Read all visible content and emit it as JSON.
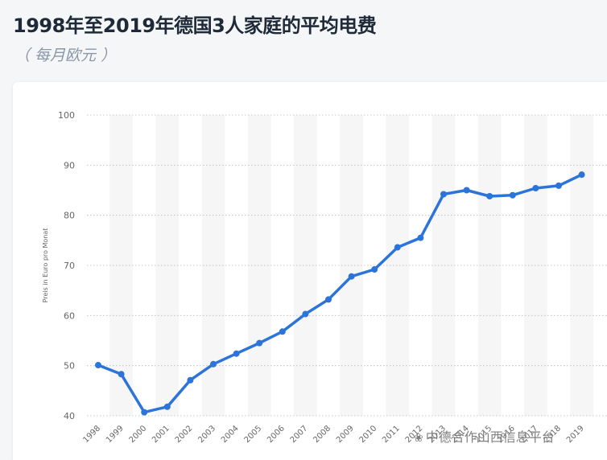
{
  "header": {
    "title": "1998年至2019年德国3人家庭的平均电费",
    "subtitle": "（ 每月欧元 ）"
  },
  "watermark": {
    "icon": "wechat-icon",
    "text": "中德合作山西信息平台"
  },
  "colors": {
    "line": "#2d74da",
    "band": "#f6f6f6",
    "grid": "#b8b8b8"
  },
  "chart_data": {
    "type": "line",
    "title": "1998年至2019年德国3人家庭的平均电费",
    "subtitle": "（ 每月欧元 ）",
    "xlabel": "",
    "ylabel": "Preis in Euro pro Monat",
    "ylim": [
      40,
      100
    ],
    "yticks": [
      40,
      50,
      60,
      70,
      80,
      90,
      100
    ],
    "grid": true,
    "categories": [
      "1998",
      "1999",
      "2000",
      "2001",
      "2002",
      "2003",
      "2004",
      "2005",
      "2006",
      "2007",
      "2008",
      "2009",
      "2010",
      "2011",
      "2012",
      "2013",
      "2014",
      "2015",
      "2016",
      "2017",
      "2018",
      "2019"
    ],
    "series": [
      {
        "values": [
          50.1,
          48.3,
          40.7,
          41.8,
          47.1,
          50.3,
          52.4,
          54.5,
          56.8,
          60.3,
          63.2,
          67.8,
          69.2,
          73.6,
          75.5,
          84.2,
          85.0,
          83.8,
          84.0,
          85.4,
          85.9,
          88.1
        ]
      }
    ]
  }
}
